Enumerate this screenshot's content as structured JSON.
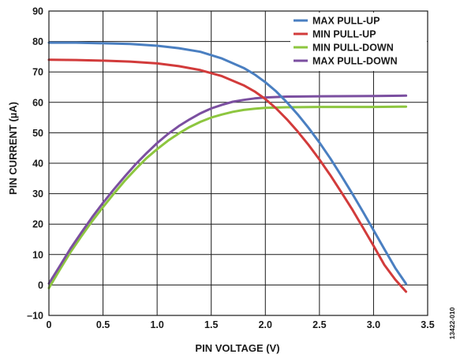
{
  "chart_data": {
    "type": "line",
    "xlabel": "PIN VOLTAGE (V)",
    "ylabel": "PIN CURRENT (µA)",
    "xlim": [
      0,
      3.5
    ],
    "ylim": [
      -10,
      90
    ],
    "xticks": [
      0,
      0.5,
      1.0,
      1.5,
      2.0,
      2.5,
      3.0,
      3.5
    ],
    "xtick_labels": [
      "0",
      "0.5",
      "1.0",
      "1.5",
      "2.0",
      "2.5",
      "3.0",
      "3.5"
    ],
    "yticks": [
      -10,
      0,
      10,
      20,
      30,
      40,
      50,
      60,
      70,
      80,
      90
    ],
    "ytick_labels": [
      "–10",
      "0",
      "10",
      "20",
      "30",
      "40",
      "50",
      "60",
      "70",
      "80",
      "90"
    ],
    "grid": true,
    "legend_position": "top-right",
    "figure_id": "13422-010",
    "series": [
      {
        "name": "MAX PULL-UP",
        "color": "#4a7fc1",
        "x": [
          0,
          0.25,
          0.5,
          0.75,
          1.0,
          1.2,
          1.4,
          1.6,
          1.8,
          1.9,
          2.0,
          2.1,
          2.2,
          2.3,
          2.4,
          2.5,
          2.6,
          2.7,
          2.8,
          2.9,
          3.0,
          3.1,
          3.2,
          3.3
        ],
        "y": [
          79.6,
          79.6,
          79.4,
          79.2,
          78.6,
          77.8,
          76.6,
          74.4,
          71.3,
          69.2,
          66.6,
          63.6,
          60.0,
          56.0,
          51.6,
          46.8,
          41.6,
          36.0,
          30.2,
          24.2,
          18.0,
          11.8,
          5.6,
          0.4
        ]
      },
      {
        "name": "MIN PULL-UP",
        "color": "#d23b3b",
        "x": [
          0,
          0.25,
          0.5,
          0.75,
          1.0,
          1.2,
          1.4,
          1.6,
          1.8,
          1.9,
          2.0,
          2.1,
          2.2,
          2.3,
          2.4,
          2.5,
          2.6,
          2.7,
          2.8,
          2.9,
          3.0,
          3.1,
          3.2,
          3.3
        ],
        "y": [
          74.0,
          73.9,
          73.7,
          73.4,
          72.8,
          71.9,
          70.6,
          68.6,
          65.6,
          63.6,
          61.1,
          58.0,
          54.4,
          50.4,
          46.0,
          41.2,
          36.1,
          30.6,
          25.0,
          19.0,
          12.9,
          6.6,
          1.8,
          -2.2
        ]
      },
      {
        "name": "MIN PULL-DOWN",
        "color": "#8dc63f",
        "x": [
          0,
          0.1,
          0.2,
          0.3,
          0.4,
          0.5,
          0.6,
          0.7,
          0.8,
          0.9,
          1.0,
          1.1,
          1.2,
          1.3,
          1.4,
          1.5,
          1.6,
          1.7,
          1.8,
          1.9,
          2.0,
          2.2,
          2.5,
          3.0,
          3.3
        ],
        "y": [
          -1.0,
          5.0,
          10.8,
          16.0,
          21.0,
          25.6,
          30.0,
          34.2,
          38.0,
          41.6,
          44.6,
          47.4,
          49.8,
          51.9,
          53.6,
          55.0,
          56.0,
          56.9,
          57.5,
          57.9,
          58.2,
          58.4,
          58.5,
          58.5,
          58.6
        ]
      },
      {
        "name": "MAX PULL-DOWN",
        "color": "#7b4fa0",
        "x": [
          0,
          0.1,
          0.2,
          0.3,
          0.4,
          0.5,
          0.6,
          0.7,
          0.8,
          0.9,
          1.0,
          1.1,
          1.2,
          1.3,
          1.4,
          1.5,
          1.6,
          1.7,
          1.8,
          1.9,
          2.0,
          2.2,
          2.5,
          3.0,
          3.3
        ],
        "y": [
          0.5,
          6.2,
          12.0,
          17.2,
          22.3,
          27.0,
          31.4,
          35.6,
          39.6,
          43.2,
          46.6,
          49.6,
          52.2,
          54.4,
          56.4,
          58.0,
          59.2,
          60.2,
          60.8,
          61.3,
          61.6,
          61.9,
          62.0,
          62.1,
          62.2
        ]
      }
    ]
  }
}
